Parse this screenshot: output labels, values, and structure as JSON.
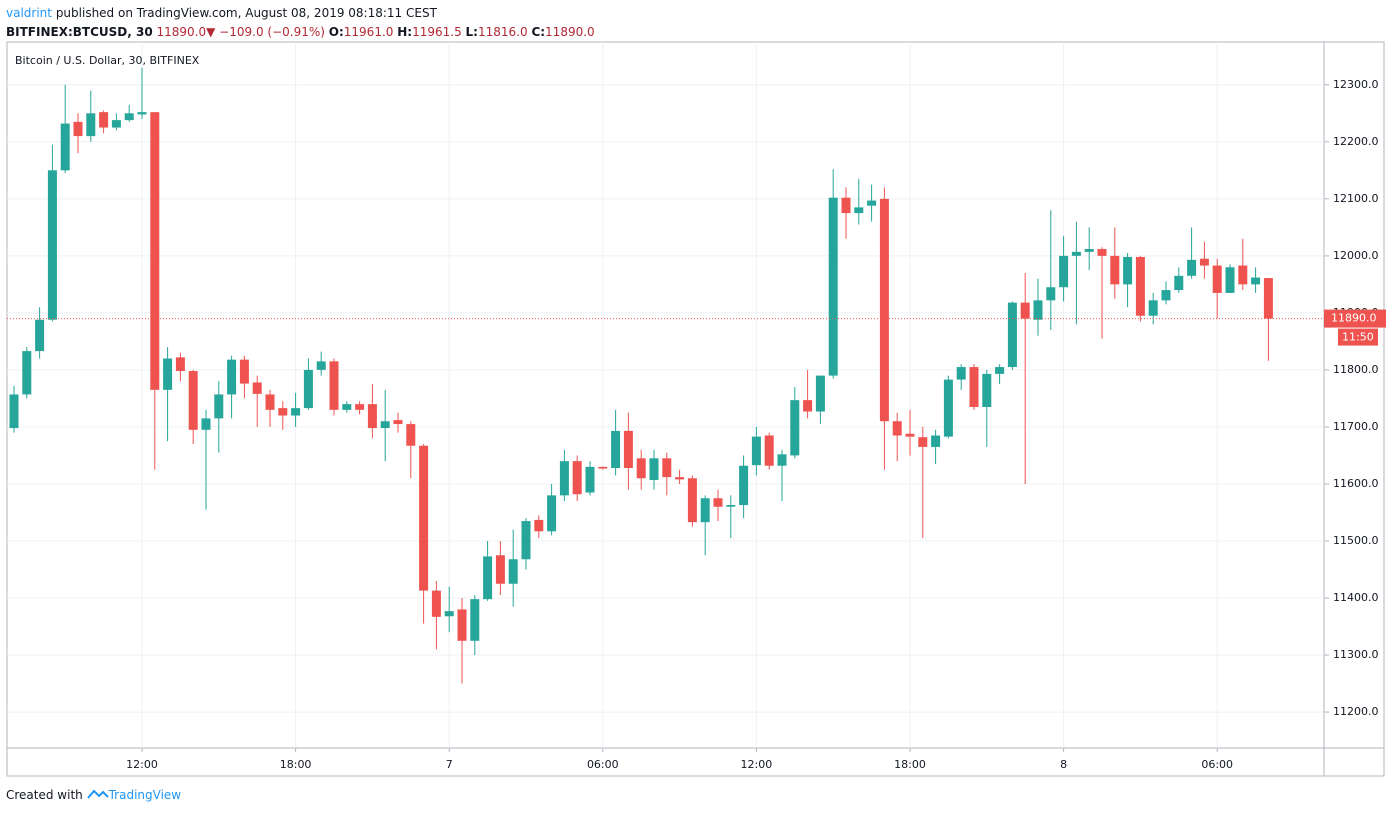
{
  "header": {
    "user": "valdrint",
    "published": "published on TradingView.com, August 08, 2019 08:18:11 CEST",
    "symbol": "BITFINEX:BTCUSD, 30",
    "last": "11890.0",
    "change": "−109.0 (−0.91%)",
    "o_label": "O:",
    "o": "11961.0",
    "h_label": "H:",
    "h": "11961.5",
    "l_label": "L:",
    "l": "11816.0",
    "c_label": "C:",
    "c": "11890.0"
  },
  "footer": {
    "created": "Created with",
    "brand": "TradingView"
  },
  "chart_data": {
    "type": "candlestick",
    "title": "Bitcoin / U.S. Dollar, 30, BITFINEX",
    "up_color": "#26a69a",
    "down_color": "#ef5350",
    "grid": true,
    "categories": [
      null,
      null,
      null,
      null,
      null,
      null,
      null,
      null,
      null,
      null,
      "12:00",
      null,
      null,
      null,
      null,
      null,
      null,
      null,
      null,
      null,
      null,
      null,
      "18:00",
      null,
      null,
      null,
      null,
      null,
      null,
      null,
      null,
      null,
      null,
      null,
      "7",
      null,
      null,
      null,
      null,
      null,
      null,
      null,
      null,
      null,
      null,
      null,
      "06:00",
      null,
      null,
      null,
      null,
      null,
      null,
      null,
      null,
      null,
      null,
      null,
      "12:00",
      null,
      null,
      null,
      null,
      null,
      null,
      null,
      null,
      null,
      null,
      null,
      "18:00",
      null,
      null,
      null,
      null,
      null,
      null,
      null,
      null,
      null,
      null,
      null,
      "8",
      null,
      null,
      null,
      null,
      null,
      null,
      null,
      null,
      null,
      null,
      null,
      "06:00",
      null,
      null,
      null,
      null
    ],
    "open": [
      11698,
      11757,
      11833,
      11888,
      12150,
      12235,
      12210,
      12252,
      12225,
      12238,
      12248,
      12252,
      11765,
      11822,
      11798,
      11695,
      11715,
      11757,
      11818,
      11778,
      11757,
      11733,
      11720,
      11733,
      11800,
      11815,
      11730,
      11740,
      11740,
      11698,
      11712,
      11705,
      11667,
      11413,
      11368,
      11380,
      11325,
      11398,
      11475,
      11425,
      11468,
      11537,
      11517,
      11580,
      11640,
      11585,
      11630,
      11628,
      11693,
      11645,
      11607,
      11645,
      11612,
      11610,
      11533,
      11575,
      11560,
      11563,
      11633,
      11685,
      11632,
      11650,
      11747,
      11727,
      11790,
      12102,
      12075,
      12088,
      12100,
      11710,
      11688,
      11682,
      11665,
      11683,
      11783,
      11805,
      11735,
      11793,
      11805,
      11918,
      11888,
      11922,
      11945,
      12000,
      12007,
      12012,
      12000,
      11950,
      11998,
      11895,
      11922,
      11940,
      11965,
      11995,
      11983,
      11935,
      11983,
      11950,
      11961
    ],
    "high": [
      11772,
      11840,
      11910,
      12195,
      12300,
      12250,
      12290,
      12255,
      12250,
      12265,
      12330,
      12252,
      11840,
      11830,
      11800,
      11730,
      11780,
      11825,
      11825,
      11790,
      11765,
      11745,
      11760,
      11820,
      11832,
      11820,
      11745,
      11745,
      11775,
      11765,
      11725,
      11710,
      11670,
      11430,
      11420,
      11400,
      11405,
      11500,
      11500,
      11520,
      11540,
      11545,
      11600,
      11660,
      11650,
      11640,
      11630,
      11730,
      11725,
      11660,
      11660,
      11655,
      11625,
      11615,
      11580,
      11590,
      11580,
      11650,
      11700,
      11690,
      11660,
      11770,
      11800,
      11790,
      12152,
      12120,
      12135,
      12125,
      12120,
      11725,
      11730,
      11700,
      11695,
      11790,
      11810,
      11810,
      11800,
      11810,
      11920,
      11970,
      11960,
      12080,
      12035,
      12060,
      12050,
      12015,
      12050,
      12005,
      12000,
      11935,
      11955,
      11980,
      12050,
      12025,
      11995,
      11985,
      12030,
      11980,
      11961.5
    ],
    "low": [
      11690,
      11750,
      11820,
      11885,
      12145,
      12180,
      12200,
      12215,
      12220,
      12235,
      12240,
      11625,
      11675,
      11780,
      11670,
      11555,
      11655,
      11715,
      11750,
      11700,
      11700,
      11695,
      11700,
      11730,
      11790,
      11720,
      11725,
      11722,
      11680,
      11640,
      11690,
      11610,
      11355,
      11310,
      11340,
      11250,
      11300,
      11395,
      11405,
      11385,
      11450,
      11505,
      11510,
      11570,
      11570,
      11580,
      11625,
      11615,
      11590,
      11590,
      11590,
      11580,
      11600,
      11525,
      11475,
      11535,
      11505,
      11540,
      11615,
      11625,
      11570,
      11645,
      11715,
      11705,
      11785,
      12030,
      12055,
      12060,
      11625,
      11640,
      11650,
      11505,
      11635,
      11680,
      11765,
      11730,
      11665,
      11775,
      11800,
      11600,
      11860,
      11870,
      11920,
      11880,
      11975,
      11855,
      11925,
      11910,
      11885,
      11880,
      11915,
      11935,
      11960,
      11960,
      11890,
      11935,
      11940,
      11935,
      11816
    ],
    "close": [
      11757,
      11833,
      11888,
      12150,
      12232,
      12210,
      12250,
      12225,
      12238,
      12250,
      12252,
      11765,
      11820,
      11798,
      11695,
      11715,
      11757,
      11818,
      11776,
      11758,
      11730,
      11720,
      11733,
      11800,
      11815,
      11730,
      11740,
      11730,
      11698,
      11710,
      11705,
      11667,
      11413,
      11367,
      11377,
      11325,
      11398,
      11473,
      11425,
      11468,
      11535,
      11517,
      11580,
      11640,
      11582,
      11630,
      11627,
      11693,
      11628,
      11610,
      11645,
      11612,
      11608,
      11533,
      11575,
      11560,
      11563,
      11632,
      11683,
      11632,
      11652,
      11747,
      11727,
      11790,
      12102,
      12075,
      12085,
      12097,
      11710,
      11685,
      11683,
      11665,
      11685,
      11783,
      11805,
      11735,
      11793,
      11805,
      11918,
      11890,
      11922,
      11945,
      12000,
      12007,
      12012,
      12000,
      11950,
      11998,
      11895,
      11922,
      11940,
      11965,
      11993,
      11983,
      11935,
      11980,
      11950,
      11962,
      11890
    ],
    "ylim": [
      11137,
      12375
    ],
    "yticks": [
      {
        "value": 11200,
        "label": "11200.0"
      },
      {
        "value": 11300,
        "label": "11300.0"
      },
      {
        "value": 11400,
        "label": "11400.0"
      },
      {
        "value": 11500,
        "label": "11500.0"
      },
      {
        "value": 11600,
        "label": "11600.0"
      },
      {
        "value": 11700,
        "label": "11700.0"
      },
      {
        "value": 11800,
        "label": "11800.0"
      },
      {
        "value": 11900,
        "label": "11900.0"
      },
      {
        "value": 12000,
        "label": "12000.0"
      },
      {
        "value": 12100,
        "label": "12100.0"
      },
      {
        "value": 12200,
        "label": "12200.0"
      },
      {
        "value": 12300,
        "label": "12300.0"
      }
    ],
    "last_price": {
      "value": 11890,
      "label": "11890.0",
      "countdown": "11:50",
      "color": "#ef5350"
    }
  }
}
